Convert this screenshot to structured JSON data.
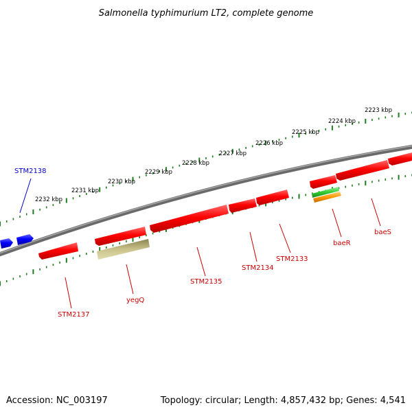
{
  "title": "Salmonella typhimurium LT2, complete genome",
  "footer": {
    "accession": "Accession: NC_003197",
    "topology": "Topology: circular; Length: 4,857,432 bp; Genes: 4,541"
  },
  "colors": {
    "backbone": "#808080",
    "tick": "#1e7d1e",
    "gene_red": "#ff0000",
    "gene_blue": "#0000ee",
    "gene_olive": "#c8c080",
    "gene_green": "#33cc33",
    "gene_orange": "#ff9900",
    "label_red": "#cc0000",
    "label_blue": "#0000cc"
  },
  "kbp_labels": [
    "2223 kbp",
    "2224 kbp",
    "2225 kbp",
    "2226 kbp",
    "2227 kbp",
    "2228 kbp",
    "2229 kbp",
    "2230 kbp",
    "2231 kbp",
    "2232 kbp"
  ],
  "gene_labels": {
    "stm2138": "STM2138",
    "stm2137": "STM2137",
    "yegq": "yegQ",
    "stm2135": "STM2135",
    "stm2134": "STM2134",
    "stm2133": "STM2133",
    "baer": "baeR",
    "baes": "baeS"
  }
}
